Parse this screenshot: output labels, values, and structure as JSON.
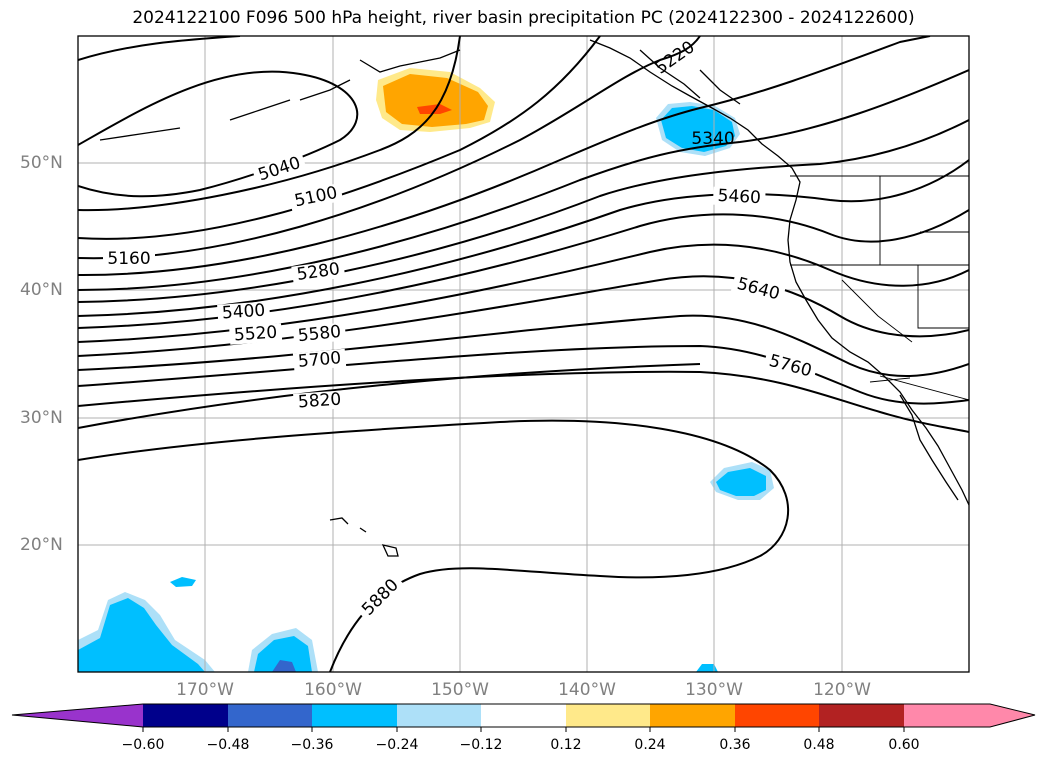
{
  "title": "2024122100 F096 500 hPa height, river basin precipitation PC (2024122300 - 2024122600)",
  "latitude_labels": [
    "50°N",
    "40°N",
    "30°N",
    "20°N"
  ],
  "longitude_labels": [
    "170°W",
    "160°W",
    "150°W",
    "140°W",
    "130°W",
    "120°W"
  ],
  "contour_labels": [
    "5040",
    "5100",
    "5160",
    "5280",
    "5400",
    "5520",
    "5580",
    "5700",
    "5820",
    "5880",
    "5460",
    "5640",
    "5760",
    "5340",
    "5220"
  ],
  "colorbar": {
    "tick_labels": [
      "−0.60",
      "−0.48",
      "−0.36",
      "−0.24",
      "−0.12",
      "0.12",
      "0.24",
      "0.36",
      "0.48",
      "0.60"
    ],
    "colors": [
      "#9933cc",
      "#00008b",
      "#3366cc",
      "#00bfff",
      "#ade0f8",
      "#ffffff",
      "#ffe98a",
      "#ffa500",
      "#ff4500",
      "#b22222",
      "#ff88aa"
    ]
  }
}
